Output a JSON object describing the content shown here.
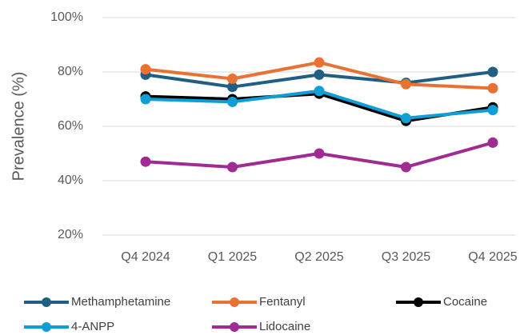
{
  "chart_data": {
    "type": "line",
    "y_label": "Prevalence (%)",
    "categories": [
      "Q4 2024",
      "Q1 2025",
      "Q2 2025",
      "Q3 2025",
      "Q4 2025"
    ],
    "series": [
      {
        "name": "Methamphetamine",
        "color": "#215f82",
        "values": [
          79,
          74.5,
          79,
          76,
          80
        ]
      },
      {
        "name": "Fentanyl",
        "color": "#e97132",
        "values": [
          81,
          77.5,
          83.5,
          75.5,
          74
        ]
      },
      {
        "name": "Cocaine",
        "color": "#000000",
        "values": [
          71,
          70,
          72,
          62,
          67
        ]
      },
      {
        "name": "4-ANPP",
        "color": "#0f9ed5",
        "values": [
          70,
          69,
          73,
          63,
          66
        ]
      },
      {
        "name": "Lidocaine",
        "color": "#a02b93",
        "values": [
          47,
          45,
          50,
          45,
          54
        ]
      }
    ],
    "ylim": [
      20,
      100
    ],
    "yticks": [
      {
        "value": 20,
        "label": "20%"
      },
      {
        "value": 40,
        "label": "40%"
      },
      {
        "value": 60,
        "label": "60%"
      },
      {
        "value": 80,
        "label": "80%"
      },
      {
        "value": 100,
        "label": "100%"
      }
    ],
    "grid": true,
    "legend": "bottom"
  }
}
